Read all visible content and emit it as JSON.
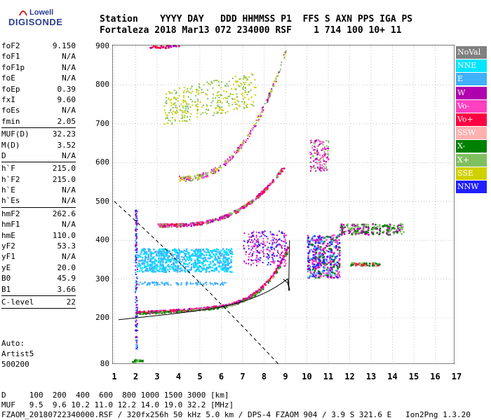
{
  "logo": {
    "line1": "Lowell",
    "line2": "DIGISONDE"
  },
  "header": {
    "row1": "Station    YYYY DAY   DDD HHMMSS P1  FFS S AXN PPS IGA PS",
    "row2": "Fortaleza 2018 Mar13 072 234000 RSF    1 714 100 10+ 11"
  },
  "params": [
    {
      "k": "foF2",
      "v": "9.150"
    },
    {
      "k": "foF1",
      "v": "N/A"
    },
    {
      "k": "foF1p",
      "v": "N/A"
    },
    {
      "k": "foE",
      "v": "N/A"
    },
    {
      "k": "foEp",
      "v": "0.39"
    },
    {
      "k": "fxI",
      "v": "9.60"
    },
    {
      "k": "foEs",
      "v": "N/A"
    },
    {
      "k": "fmin",
      "v": "2.05"
    },
    {
      "sep": true
    },
    {
      "k": "MUF(D)",
      "v": "32.23"
    },
    {
      "k": "M(D)",
      "v": "3.52"
    },
    {
      "k": "D",
      "v": "N/A"
    },
    {
      "sep": true
    },
    {
      "k": "h`F",
      "v": "215.0"
    },
    {
      "k": "h`F2",
      "v": "215.0"
    },
    {
      "k": "h`E",
      "v": "N/A"
    },
    {
      "k": "h`Es",
      "v": "N/A"
    },
    {
      "sep": true
    },
    {
      "k": "hmF2",
      "v": "262.6"
    },
    {
      "k": "hmF1",
      "v": "N/A"
    },
    {
      "k": "hmE",
      "v": "110.0"
    },
    {
      "k": "yF2",
      "v": "53.3"
    },
    {
      "k": "yF1",
      "v": "N/A"
    },
    {
      "k": "yE",
      "v": "20.0"
    },
    {
      "k": "B0",
      "v": "45.9"
    },
    {
      "k": "B1",
      "v": "3.66"
    },
    {
      "sep": true
    },
    {
      "k": "C-level",
      "v": "22"
    },
    {
      "sep": true
    }
  ],
  "auto": {
    "l1": "Auto:",
    "l2": "Artist5",
    "l3": "500200"
  },
  "legend": [
    {
      "label": "NoVal",
      "color": "#808080"
    },
    {
      "label": "NNE",
      "color": "#00e5ff"
    },
    {
      "label": "E",
      "color": "#40b0ff"
    },
    {
      "label": "W",
      "color": "#b000b0"
    },
    {
      "label": "Vo-",
      "color": "#ff40c0"
    },
    {
      "label": "Vo+",
      "color": "#ff0040"
    },
    {
      "label": "SSW",
      "color": "#ffb0b0"
    },
    {
      "label": "X-",
      "color": "#008000"
    },
    {
      "label": "X+",
      "color": "#80c060"
    },
    {
      "label": "SSE",
      "color": "#d0d000"
    },
    {
      "label": "NNW",
      "color": "#2020ff"
    }
  ],
  "axes": {
    "y_ticks": [
      80,
      200,
      300,
      400,
      500,
      600,
      700,
      800,
      900
    ],
    "x_ticks": [
      1,
      2,
      3,
      4,
      5,
      6,
      7,
      8,
      9,
      10,
      11,
      12,
      13,
      14,
      15,
      16,
      17
    ]
  },
  "footer": {
    "d_row": "D     100  200  400  600  800 1000 1500 3000 [km]",
    "muf_row": "MUF   9.5  9.6 10.2 11.0 12.2 14.0 19.0 32.2 [MHz]",
    "file_row": "FZAOM_20180722340000.RSF / 320fx256h 50 kHz 5.0 km / DPS-4 FZAOM 904 / 3.9 S 321.6 E   Ion2Png 1.3.20"
  }
}
